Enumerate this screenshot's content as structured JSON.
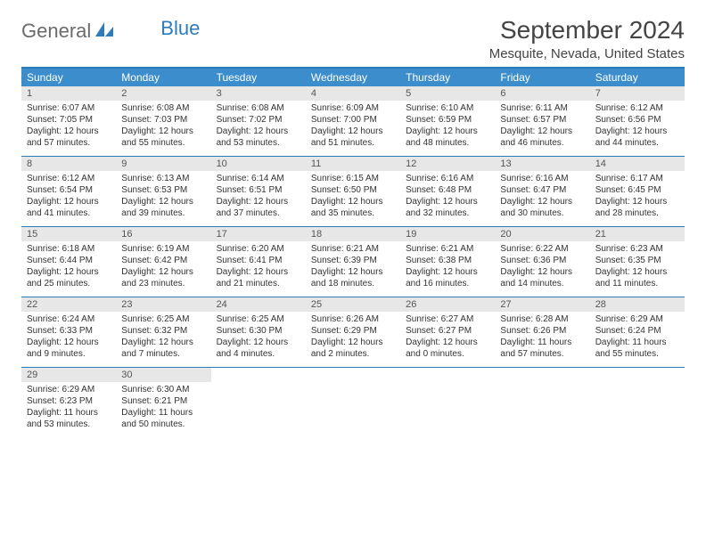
{
  "logo": {
    "text1": "General",
    "text2": "Blue"
  },
  "title": "September 2024",
  "subtitle": "Mesquite, Nevada, United States",
  "colors": {
    "header_bg": "#3c8dcc",
    "accent_border": "#2c7bba",
    "daynum_bg": "#e7e7e7",
    "text": "#333333",
    "logo_gray": "#6b6b6b",
    "logo_blue": "#2c7bba"
  },
  "day_names": [
    "Sunday",
    "Monday",
    "Tuesday",
    "Wednesday",
    "Thursday",
    "Friday",
    "Saturday"
  ],
  "weeks": [
    [
      {
        "n": "1",
        "sunrise": "6:07 AM",
        "sunset": "7:05 PM",
        "dl": "12 hours and 57 minutes."
      },
      {
        "n": "2",
        "sunrise": "6:08 AM",
        "sunset": "7:03 PM",
        "dl": "12 hours and 55 minutes."
      },
      {
        "n": "3",
        "sunrise": "6:08 AM",
        "sunset": "7:02 PM",
        "dl": "12 hours and 53 minutes."
      },
      {
        "n": "4",
        "sunrise": "6:09 AM",
        "sunset": "7:00 PM",
        "dl": "12 hours and 51 minutes."
      },
      {
        "n": "5",
        "sunrise": "6:10 AM",
        "sunset": "6:59 PM",
        "dl": "12 hours and 48 minutes."
      },
      {
        "n": "6",
        "sunrise": "6:11 AM",
        "sunset": "6:57 PM",
        "dl": "12 hours and 46 minutes."
      },
      {
        "n": "7",
        "sunrise": "6:12 AM",
        "sunset": "6:56 PM",
        "dl": "12 hours and 44 minutes."
      }
    ],
    [
      {
        "n": "8",
        "sunrise": "6:12 AM",
        "sunset": "6:54 PM",
        "dl": "12 hours and 41 minutes."
      },
      {
        "n": "9",
        "sunrise": "6:13 AM",
        "sunset": "6:53 PM",
        "dl": "12 hours and 39 minutes."
      },
      {
        "n": "10",
        "sunrise": "6:14 AM",
        "sunset": "6:51 PM",
        "dl": "12 hours and 37 minutes."
      },
      {
        "n": "11",
        "sunrise": "6:15 AM",
        "sunset": "6:50 PM",
        "dl": "12 hours and 35 minutes."
      },
      {
        "n": "12",
        "sunrise": "6:16 AM",
        "sunset": "6:48 PM",
        "dl": "12 hours and 32 minutes."
      },
      {
        "n": "13",
        "sunrise": "6:16 AM",
        "sunset": "6:47 PM",
        "dl": "12 hours and 30 minutes."
      },
      {
        "n": "14",
        "sunrise": "6:17 AM",
        "sunset": "6:45 PM",
        "dl": "12 hours and 28 minutes."
      }
    ],
    [
      {
        "n": "15",
        "sunrise": "6:18 AM",
        "sunset": "6:44 PM",
        "dl": "12 hours and 25 minutes."
      },
      {
        "n": "16",
        "sunrise": "6:19 AM",
        "sunset": "6:42 PM",
        "dl": "12 hours and 23 minutes."
      },
      {
        "n": "17",
        "sunrise": "6:20 AM",
        "sunset": "6:41 PM",
        "dl": "12 hours and 21 minutes."
      },
      {
        "n": "18",
        "sunrise": "6:21 AM",
        "sunset": "6:39 PM",
        "dl": "12 hours and 18 minutes."
      },
      {
        "n": "19",
        "sunrise": "6:21 AM",
        "sunset": "6:38 PM",
        "dl": "12 hours and 16 minutes."
      },
      {
        "n": "20",
        "sunrise": "6:22 AM",
        "sunset": "6:36 PM",
        "dl": "12 hours and 14 minutes."
      },
      {
        "n": "21",
        "sunrise": "6:23 AM",
        "sunset": "6:35 PM",
        "dl": "12 hours and 11 minutes."
      }
    ],
    [
      {
        "n": "22",
        "sunrise": "6:24 AM",
        "sunset": "6:33 PM",
        "dl": "12 hours and 9 minutes."
      },
      {
        "n": "23",
        "sunrise": "6:25 AM",
        "sunset": "6:32 PM",
        "dl": "12 hours and 7 minutes."
      },
      {
        "n": "24",
        "sunrise": "6:25 AM",
        "sunset": "6:30 PM",
        "dl": "12 hours and 4 minutes."
      },
      {
        "n": "25",
        "sunrise": "6:26 AM",
        "sunset": "6:29 PM",
        "dl": "12 hours and 2 minutes."
      },
      {
        "n": "26",
        "sunrise": "6:27 AM",
        "sunset": "6:27 PM",
        "dl": "12 hours and 0 minutes."
      },
      {
        "n": "27",
        "sunrise": "6:28 AM",
        "sunset": "6:26 PM",
        "dl": "11 hours and 57 minutes."
      },
      {
        "n": "28",
        "sunrise": "6:29 AM",
        "sunset": "6:24 PM",
        "dl": "11 hours and 55 minutes."
      }
    ],
    [
      {
        "n": "29",
        "sunrise": "6:29 AM",
        "sunset": "6:23 PM",
        "dl": "11 hours and 53 minutes."
      },
      {
        "n": "30",
        "sunrise": "6:30 AM",
        "sunset": "6:21 PM",
        "dl": "11 hours and 50 minutes."
      },
      null,
      null,
      null,
      null,
      null
    ]
  ]
}
